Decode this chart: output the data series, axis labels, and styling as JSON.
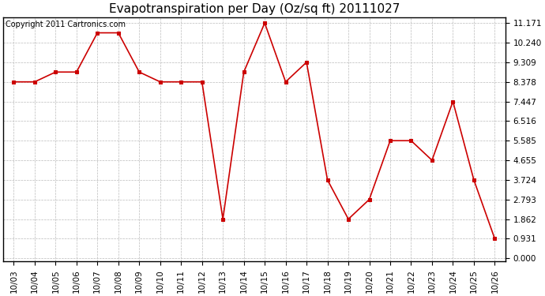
{
  "title": "Evapotranspiration per Day (Oz/sq ft) 20111027",
  "copyright_text": "Copyright 2011 Cartronics.com",
  "x_labels": [
    "10/03",
    "10/04",
    "10/05",
    "10/06",
    "10/07",
    "10/08",
    "10/09",
    "10/10",
    "10/11",
    "10/12",
    "10/13",
    "10/14",
    "10/15",
    "10/16",
    "10/17",
    "10/18",
    "10/19",
    "10/20",
    "10/21",
    "10/22",
    "10/23",
    "10/24",
    "10/25",
    "10/26"
  ],
  "y_values": [
    8.378,
    8.378,
    8.844,
    8.844,
    10.706,
    10.706,
    8.844,
    8.378,
    8.378,
    8.378,
    1.862,
    8.844,
    11.171,
    8.378,
    9.309,
    3.724,
    1.862,
    2.793,
    5.585,
    5.585,
    4.655,
    7.447,
    3.724,
    0.931
  ],
  "y_ticks": [
    0.0,
    0.931,
    1.862,
    2.793,
    3.724,
    4.655,
    5.585,
    6.516,
    7.447,
    8.378,
    9.309,
    10.24,
    11.171
  ],
  "line_color": "#cc0000",
  "marker_color": "#cc0000",
  "marker": "s",
  "marker_size": 3,
  "background_color": "#ffffff",
  "grid_color": "#bbbbbb",
  "title_fontsize": 11,
  "copyright_fontsize": 7,
  "tick_fontsize": 7.5,
  "ylim": [
    -0.15,
    11.45
  ],
  "figsize": [
    6.9,
    3.75
  ],
  "dpi": 100
}
